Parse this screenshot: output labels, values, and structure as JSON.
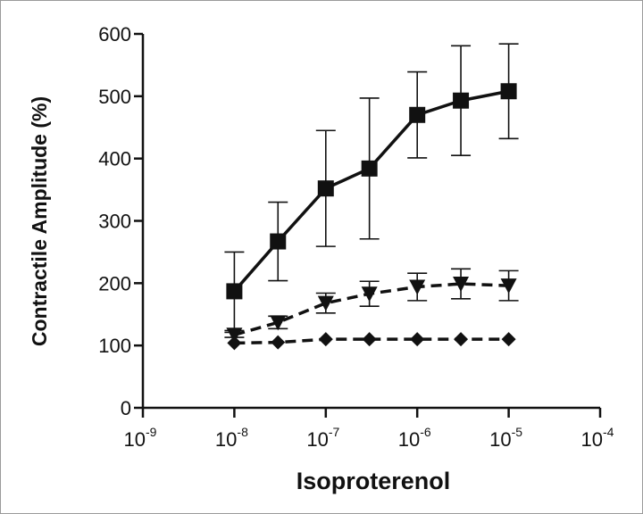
{
  "chart_data": {
    "type": "line",
    "title": "",
    "xlabel": "Isoproterenol",
    "ylabel": "Contractile Amplitude (%)",
    "xscale": "log",
    "x_exponents": [
      -9,
      -8,
      -7,
      -6,
      -5,
      -4
    ],
    "x_tick_labels": [
      {
        "base": "10",
        "exp": "-9"
      },
      {
        "base": "10",
        "exp": "-8"
      },
      {
        "base": "10",
        "exp": "-7"
      },
      {
        "base": "10",
        "exp": "-6"
      },
      {
        "base": "10",
        "exp": "-5"
      },
      {
        "base": "10",
        "exp": "-4"
      }
    ],
    "yticks": [
      0,
      100,
      200,
      300,
      400,
      500,
      600
    ],
    "ytick_labels": [
      "0",
      "100",
      "200",
      "300",
      "400",
      "500",
      "600"
    ],
    "ylim": [
      0,
      600
    ],
    "x": [
      1e-08,
      3e-08,
      1e-07,
      3e-07,
      1e-06,
      3e-06,
      1e-05
    ],
    "series": [
      {
        "name": "square",
        "marker": "square",
        "line": "solid",
        "values": [
          187,
          267,
          352,
          384,
          470,
          493,
          508
        ],
        "errors": [
          63,
          63,
          93,
          113,
          69,
          88,
          76
        ]
      },
      {
        "name": "triangle-down",
        "marker": "triangle-down",
        "line": "dashed",
        "values": [
          117,
          137,
          168,
          183,
          194,
          199,
          196
        ],
        "errors": [
          4,
          10,
          16,
          20,
          22,
          24,
          24
        ]
      },
      {
        "name": "diamond",
        "marker": "diamond",
        "line": "dashed",
        "values": [
          104,
          105,
          110,
          110,
          110,
          110,
          110
        ],
        "errors": [
          2,
          2,
          2,
          2,
          2,
          2,
          2
        ]
      }
    ]
  }
}
